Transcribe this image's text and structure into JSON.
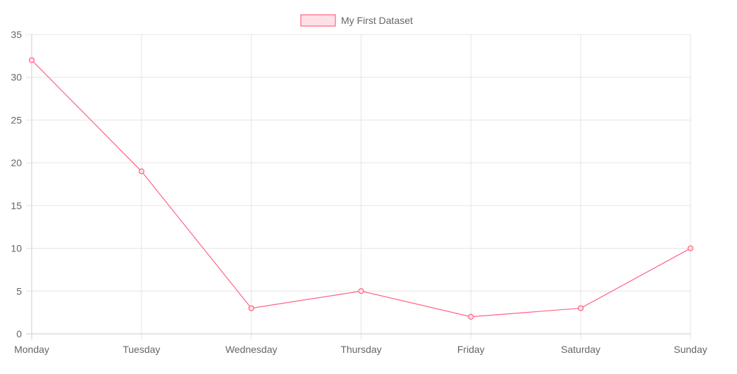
{
  "chart_data": {
    "type": "line",
    "categories": [
      "Monday",
      "Tuesday",
      "Wednesday",
      "Thursday",
      "Friday",
      "Saturday",
      "Sunday"
    ],
    "series": [
      {
        "name": "My First Dataset",
        "values": [
          32,
          19,
          3,
          5,
          2,
          3,
          10
        ],
        "line_color": "#ff6384",
        "fill_color": "#ffe0e6"
      }
    ],
    "y_ticks": [
      "0",
      "5",
      "10",
      "15",
      "20",
      "25",
      "30",
      "35"
    ],
    "ylim": [
      0,
      35
    ],
    "grid": true,
    "legend_position": "top-center",
    "title": "",
    "xlabel": "",
    "ylabel": ""
  }
}
